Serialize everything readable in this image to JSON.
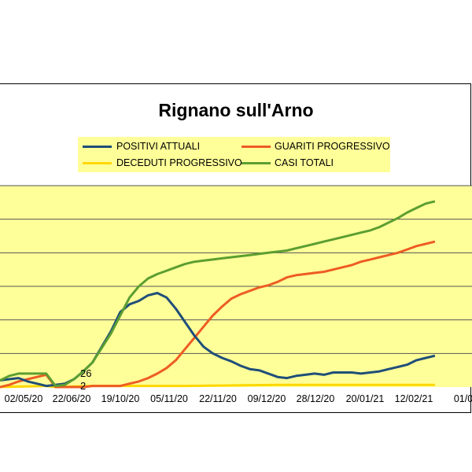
{
  "chart_data": {
    "type": "line",
    "title": "Rignano sull'Arno",
    "xlabel": "",
    "ylabel": "",
    "x_tick_labels": [
      "02/05/20",
      "22/06/20",
      "19/10/20",
      "05/11/20",
      "22/11/20",
      "09/12/20",
      "28/12/20",
      "20/01/21",
      "12/02/21",
      "01/0"
    ],
    "annotations": [
      "26",
      "2"
    ],
    "grid": true,
    "legend_placement": "top-center",
    "plot_background": "#ffff99",
    "series": [
      {
        "name": "POSITIVI ATTUALI",
        "color": "#1f4e79",
        "points": [
          [
            0,
            6
          ],
          [
            1,
            7
          ],
          [
            2,
            8
          ],
          [
            3,
            5
          ],
          [
            4,
            3
          ],
          [
            5,
            1
          ],
          [
            6,
            2
          ],
          [
            7,
            3
          ],
          [
            8,
            7
          ],
          [
            9,
            14
          ],
          [
            10,
            22
          ],
          [
            11,
            36
          ],
          [
            12,
            50
          ],
          [
            13,
            67
          ],
          [
            14,
            74
          ],
          [
            15,
            77
          ],
          [
            16,
            82
          ],
          [
            17,
            84
          ],
          [
            18,
            80
          ],
          [
            19,
            70
          ],
          [
            20,
            58
          ],
          [
            21,
            46
          ],
          [
            22,
            36
          ],
          [
            23,
            30
          ],
          [
            24,
            26
          ],
          [
            25,
            23
          ],
          [
            26,
            19
          ],
          [
            27,
            16
          ],
          [
            28,
            15
          ],
          [
            29,
            12
          ],
          [
            30,
            9
          ],
          [
            31,
            8
          ],
          [
            32,
            10
          ],
          [
            33,
            11
          ],
          [
            34,
            12
          ],
          [
            35,
            11
          ],
          [
            36,
            13
          ],
          [
            37,
            13
          ],
          [
            38,
            13
          ],
          [
            39,
            12
          ],
          [
            40,
            13
          ],
          [
            41,
            14
          ],
          [
            42,
            16
          ],
          [
            43,
            18
          ],
          [
            44,
            20
          ],
          [
            45,
            24
          ],
          [
            46,
            26
          ],
          [
            47,
            28
          ]
        ]
      },
      {
        "name": "GUARITI PROGRESSIVO",
        "color": "#ed5c23",
        "points": [
          [
            0,
            0
          ],
          [
            1,
            2
          ],
          [
            2,
            5
          ],
          [
            3,
            7
          ],
          [
            4,
            9
          ],
          [
            5,
            11
          ],
          [
            6,
            0
          ],
          [
            7,
            0
          ],
          [
            8,
            0
          ],
          [
            9,
            0
          ],
          [
            10,
            1
          ],
          [
            11,
            1
          ],
          [
            12,
            1
          ],
          [
            13,
            1
          ],
          [
            14,
            3
          ],
          [
            15,
            5
          ],
          [
            16,
            8
          ],
          [
            17,
            12
          ],
          [
            18,
            17
          ],
          [
            19,
            24
          ],
          [
            20,
            34
          ],
          [
            21,
            44
          ],
          [
            22,
            54
          ],
          [
            23,
            64
          ],
          [
            24,
            72
          ],
          [
            25,
            79
          ],
          [
            26,
            83
          ],
          [
            27,
            86
          ],
          [
            28,
            89
          ],
          [
            29,
            91
          ],
          [
            30,
            94
          ],
          [
            31,
            98
          ],
          [
            32,
            100
          ],
          [
            33,
            101
          ],
          [
            34,
            102
          ],
          [
            35,
            103
          ],
          [
            36,
            105
          ],
          [
            37,
            107
          ],
          [
            38,
            109
          ],
          [
            39,
            112
          ],
          [
            40,
            114
          ],
          [
            41,
            116
          ],
          [
            42,
            118
          ],
          [
            43,
            120
          ],
          [
            44,
            123
          ],
          [
            45,
            126
          ],
          [
            46,
            128
          ],
          [
            47,
            130
          ]
        ]
      },
      {
        "name": "DECEDUTI PROGRESSIVO",
        "color": "#ffd700",
        "points": [
          [
            0,
            0
          ],
          [
            5,
            1
          ],
          [
            6,
            0
          ],
          [
            10,
            1
          ],
          [
            20,
            1
          ],
          [
            30,
            2
          ],
          [
            40,
            2
          ],
          [
            47,
            2
          ]
        ]
      },
      {
        "name": "CASI TOTALI",
        "color": "#5c9e31",
        "points": [
          [
            0,
            6
          ],
          [
            1,
            10
          ],
          [
            2,
            12
          ],
          [
            3,
            12
          ],
          [
            4,
            12
          ],
          [
            5,
            12
          ],
          [
            6,
            1
          ],
          [
            7,
            2
          ],
          [
            8,
            7
          ],
          [
            9,
            14
          ],
          [
            10,
            22
          ],
          [
            11,
            35
          ],
          [
            12,
            48
          ],
          [
            13,
            64
          ],
          [
            14,
            80
          ],
          [
            15,
            90
          ],
          [
            16,
            97
          ],
          [
            17,
            101
          ],
          [
            18,
            104
          ],
          [
            19,
            107
          ],
          [
            20,
            110
          ],
          [
            21,
            112
          ],
          [
            22,
            113
          ],
          [
            23,
            114
          ],
          [
            24,
            115
          ],
          [
            25,
            116
          ],
          [
            26,
            117
          ],
          [
            27,
            118
          ],
          [
            28,
            119
          ],
          [
            29,
            120
          ],
          [
            30,
            121
          ],
          [
            31,
            122
          ],
          [
            32,
            124
          ],
          [
            33,
            126
          ],
          [
            34,
            128
          ],
          [
            35,
            130
          ],
          [
            36,
            132
          ],
          [
            37,
            134
          ],
          [
            38,
            136
          ],
          [
            39,
            138
          ],
          [
            40,
            140
          ],
          [
            41,
            143
          ],
          [
            42,
            147
          ],
          [
            43,
            151
          ],
          [
            44,
            156
          ],
          [
            45,
            160
          ],
          [
            46,
            164
          ],
          [
            47,
            166
          ]
        ]
      }
    ]
  }
}
